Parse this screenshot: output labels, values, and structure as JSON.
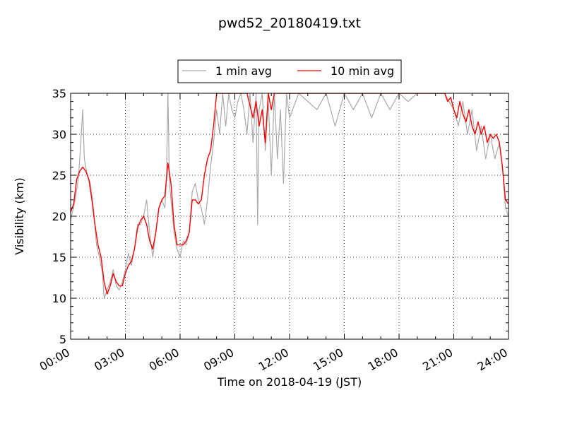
{
  "chart_data": {
    "type": "line",
    "title": "pwd52_20180419.txt",
    "xlabel": "Time on 2018-04-19 (JST)",
    "ylabel": "Visibility (km)",
    "xlim": [
      "00:00",
      "24:00"
    ],
    "ylim": [
      5,
      35
    ],
    "x_ticks": [
      "00:00",
      "03:00",
      "06:00",
      "09:00",
      "12:00",
      "15:00",
      "18:00",
      "21:00",
      "24:00"
    ],
    "y_ticks": [
      5,
      10,
      15,
      20,
      25,
      30,
      35
    ],
    "grid": true,
    "legend": "top-center",
    "series": [
      {
        "name": "1 min avg",
        "color": "#a9a9a9",
        "points": [
          [
            "00:00",
            19.5
          ],
          [
            "00:15",
            22
          ],
          [
            "00:25",
            24.5
          ],
          [
            "00:30",
            27
          ],
          [
            "00:40",
            33
          ],
          [
            "00:45",
            27
          ],
          [
            "00:55",
            25
          ],
          [
            "01:05",
            24
          ],
          [
            "01:15",
            21
          ],
          [
            "01:25",
            16.5
          ],
          [
            "01:35",
            15
          ],
          [
            "01:45",
            13
          ],
          [
            "01:50",
            10
          ],
          [
            "02:00",
            11
          ],
          [
            "02:10",
            12
          ],
          [
            "02:20",
            13.5
          ],
          [
            "02:30",
            11.5
          ],
          [
            "02:40",
            11
          ],
          [
            "02:50",
            12
          ],
          [
            "03:00",
            13.5
          ],
          [
            "03:10",
            15.5
          ],
          [
            "03:20",
            14
          ],
          [
            "03:30",
            16
          ],
          [
            "03:40",
            19
          ],
          [
            "03:50",
            19
          ],
          [
            "04:00",
            20
          ],
          [
            "04:10",
            22
          ],
          [
            "04:20",
            18
          ],
          [
            "04:30",
            15
          ],
          [
            "04:40",
            18
          ],
          [
            "04:50",
            21
          ],
          [
            "05:00",
            22
          ],
          [
            "05:10",
            21
          ],
          [
            "05:15",
            24.5
          ],
          [
            "05:20",
            35
          ],
          [
            "05:25",
            24
          ],
          [
            "05:30",
            22
          ],
          [
            "05:40",
            18
          ],
          [
            "05:50",
            16
          ],
          [
            "06:00",
            15
          ],
          [
            "06:10",
            17
          ],
          [
            "06:20",
            16.5
          ],
          [
            "06:30",
            18
          ],
          [
            "06:40",
            23
          ],
          [
            "06:50",
            24
          ],
          [
            "07:00",
            22
          ],
          [
            "07:10",
            21
          ],
          [
            "07:20",
            19
          ],
          [
            "07:30",
            22
          ],
          [
            "07:40",
            26
          ],
          [
            "07:50",
            29
          ],
          [
            "08:00",
            33
          ],
          [
            "08:10",
            30
          ],
          [
            "08:20",
            35
          ],
          [
            "08:30",
            31
          ],
          [
            "08:40",
            35
          ],
          [
            "08:50",
            33
          ],
          [
            "09:00",
            32
          ],
          [
            "09:10",
            34
          ],
          [
            "09:20",
            35
          ],
          [
            "09:30",
            33
          ],
          [
            "09:40",
            30
          ],
          [
            "09:50",
            35
          ],
          [
            "10:00",
            29
          ],
          [
            "10:10",
            35
          ],
          [
            "10:15",
            19
          ],
          [
            "10:20",
            33
          ],
          [
            "10:30",
            35
          ],
          [
            "10:40",
            28
          ],
          [
            "10:50",
            34
          ],
          [
            "11:00",
            25
          ],
          [
            "11:10",
            35
          ],
          [
            "11:20",
            27
          ],
          [
            "11:30",
            33
          ],
          [
            "11:40",
            24
          ],
          [
            "11:50",
            35
          ],
          [
            "12:00",
            32
          ],
          [
            "12:30",
            35
          ],
          [
            "13:00",
            34
          ],
          [
            "13:30",
            33
          ],
          [
            "14:00",
            35
          ],
          [
            "14:30",
            31
          ],
          [
            "15:00",
            35
          ],
          [
            "15:30",
            33
          ],
          [
            "16:00",
            35
          ],
          [
            "16:30",
            32
          ],
          [
            "17:00",
            35
          ],
          [
            "17:30",
            33
          ],
          [
            "18:00",
            35
          ],
          [
            "18:30",
            34
          ],
          [
            "19:00",
            35
          ],
          [
            "19:30",
            35
          ],
          [
            "20:00",
            35
          ],
          [
            "20:30",
            35
          ],
          [
            "21:00",
            33
          ],
          [
            "21:15",
            31
          ],
          [
            "21:30",
            34
          ],
          [
            "21:45",
            30
          ],
          [
            "22:00",
            33
          ],
          [
            "22:15",
            28
          ],
          [
            "22:30",
            31
          ],
          [
            "22:45",
            27
          ],
          [
            "23:00",
            30
          ],
          [
            "23:15",
            27
          ],
          [
            "23:30",
            29
          ],
          [
            "23:40",
            26
          ],
          [
            "23:50",
            21
          ],
          [
            "24:00",
            20
          ]
        ]
      },
      {
        "name": "10 min avg",
        "color": "#ff0000",
        "points": [
          [
            "00:00",
            20.5
          ],
          [
            "00:10",
            21.5
          ],
          [
            "00:20",
            24.5
          ],
          [
            "00:30",
            25.5
          ],
          [
            "00:40",
            26
          ],
          [
            "00:50",
            25.5
          ],
          [
            "01:00",
            24.5
          ],
          [
            "01:10",
            22
          ],
          [
            "01:20",
            19
          ],
          [
            "01:30",
            16.5
          ],
          [
            "01:40",
            15
          ],
          [
            "01:50",
            12
          ],
          [
            "02:00",
            10.5
          ],
          [
            "02:10",
            11.5
          ],
          [
            "02:20",
            13
          ],
          [
            "02:30",
            12
          ],
          [
            "02:40",
            11.5
          ],
          [
            "02:50",
            11.5
          ],
          [
            "03:00",
            13
          ],
          [
            "03:10",
            14
          ],
          [
            "03:20",
            14.5
          ],
          [
            "03:30",
            16
          ],
          [
            "03:40",
            18.5
          ],
          [
            "03:50",
            19.5
          ],
          [
            "04:00",
            20
          ],
          [
            "04:10",
            19
          ],
          [
            "04:20",
            17
          ],
          [
            "04:30",
            16
          ],
          [
            "04:40",
            18
          ],
          [
            "04:50",
            21
          ],
          [
            "05:00",
            22
          ],
          [
            "05:10",
            22.5
          ],
          [
            "05:20",
            26.5
          ],
          [
            "05:30",
            24
          ],
          [
            "05:40",
            19
          ],
          [
            "05:50",
            16.5
          ],
          [
            "06:00",
            16.5
          ],
          [
            "06:10",
            16.5
          ],
          [
            "06:20",
            17
          ],
          [
            "06:30",
            18
          ],
          [
            "06:40",
            22
          ],
          [
            "06:50",
            22
          ],
          [
            "07:00",
            21.5
          ],
          [
            "07:10",
            22
          ],
          [
            "07:20",
            25
          ],
          [
            "07:30",
            27
          ],
          [
            "07:40",
            28
          ],
          [
            "07:50",
            31
          ],
          [
            "08:00",
            35
          ],
          [
            "08:20",
            35
          ],
          [
            "08:40",
            35
          ],
          [
            "09:00",
            35
          ],
          [
            "09:20",
            35
          ],
          [
            "09:40",
            35
          ],
          [
            "10:00",
            32
          ],
          [
            "10:10",
            34
          ],
          [
            "10:20",
            31
          ],
          [
            "10:30",
            33
          ],
          [
            "10:40",
            29
          ],
          [
            "10:50",
            35
          ],
          [
            "11:00",
            33
          ],
          [
            "11:10",
            35
          ],
          [
            "11:30",
            35
          ],
          [
            "12:00",
            35
          ],
          [
            "15:00",
            35
          ],
          [
            "18:00",
            35
          ],
          [
            "20:00",
            35
          ],
          [
            "20:30",
            35
          ],
          [
            "20:40",
            34
          ],
          [
            "20:50",
            34.5
          ],
          [
            "21:00",
            33
          ],
          [
            "21:10",
            32
          ],
          [
            "21:20",
            34
          ],
          [
            "21:30",
            32.5
          ],
          [
            "21:40",
            31.5
          ],
          [
            "21:50",
            33
          ],
          [
            "22:00",
            31
          ],
          [
            "22:10",
            30
          ],
          [
            "22:20",
            31.5
          ],
          [
            "22:30",
            30
          ],
          [
            "22:40",
            31
          ],
          [
            "22:50",
            29
          ],
          [
            "23:00",
            30
          ],
          [
            "23:10",
            29.5
          ],
          [
            "23:20",
            30
          ],
          [
            "23:30",
            29
          ],
          [
            "23:40",
            26
          ],
          [
            "23:50",
            22
          ],
          [
            "24:00",
            21.5
          ]
        ]
      }
    ]
  }
}
